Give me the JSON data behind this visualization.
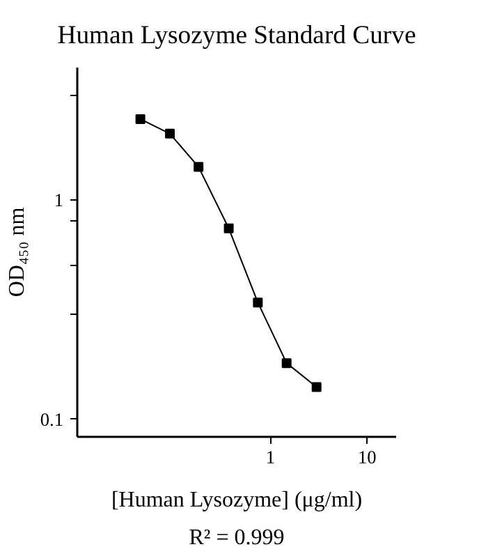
{
  "chart_data": {
    "type": "line",
    "title": "Human Lysozyme Standard Curve",
    "xlabel": "[Human Lysozyme] (μg/ml)",
    "ylabel": "OD₄₅₀ nm",
    "annotations": [
      "R² = 0.999"
    ],
    "log": "xy",
    "marker": "square",
    "line_style": "solid",
    "grid": false,
    "x": [
      0.045,
      0.091,
      0.18,
      0.37,
      0.74,
      1.47,
      3.0
    ],
    "series": [
      {
        "color": "#000000",
        "values": [
          2.33,
          2.0,
          1.41,
          0.74,
          0.34,
          0.18,
          0.14
        ]
      }
    ],
    "xlim": [
      0.01,
      20
    ],
    "ylim": [
      0.083,
      4.0
    ],
    "xticks": [
      1,
      10
    ],
    "yticks": [
      0.1,
      {
        "value": 0.3,
        "label": null
      },
      {
        "value": 0.5,
        "label": null
      },
      {
        "value": 0.8,
        "label": null
      },
      1,
      {
        "value": 3,
        "label": null
      }
    ]
  }
}
